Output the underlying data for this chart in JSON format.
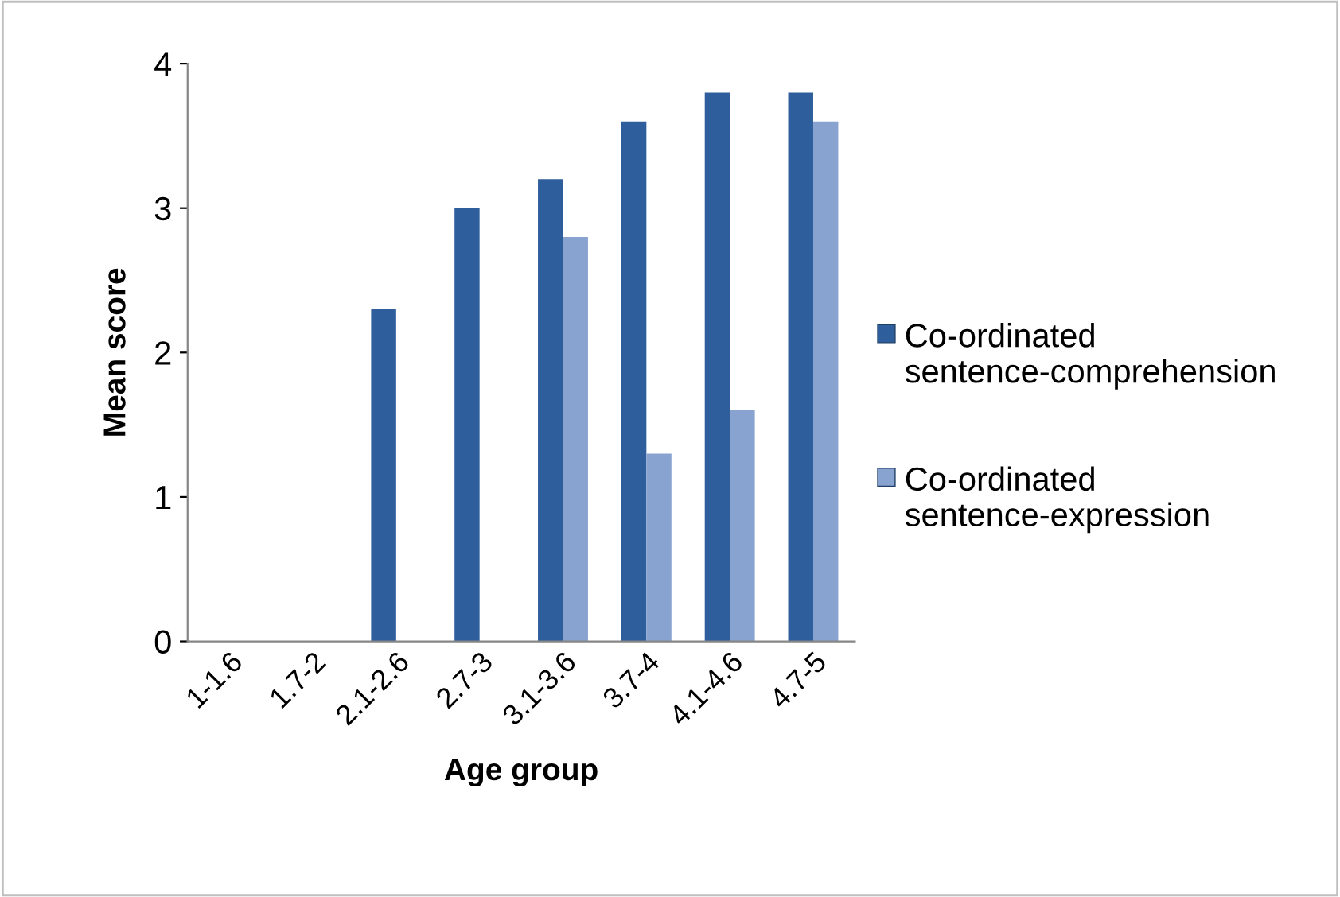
{
  "chart_data": {
    "type": "bar",
    "xlabel": "Age group",
    "ylabel": "Mean score",
    "categories": [
      "1-1.6",
      "1.7-2",
      "2.1-2.6",
      "2.7-3",
      "3.1-3.6",
      "3.7-4",
      "4.1-4.6",
      "4.7-5"
    ],
    "series": [
      {
        "name": "Co-ordinated sentence-comprehension",
        "color": "#2e5e9c",
        "values": [
          0,
          0,
          2.3,
          3.0,
          3.2,
          3.6,
          3.8,
          3.8
        ]
      },
      {
        "name": "Co-ordinated sentence-expression",
        "color": "#88a3cf",
        "values": [
          0,
          0,
          0,
          0,
          2.8,
          1.3,
          1.6,
          3.6
        ]
      }
    ],
    "ylim": [
      0,
      4
    ],
    "yticks": [
      0,
      1,
      2,
      3,
      4
    ],
    "grid": false,
    "legend": "right"
  }
}
